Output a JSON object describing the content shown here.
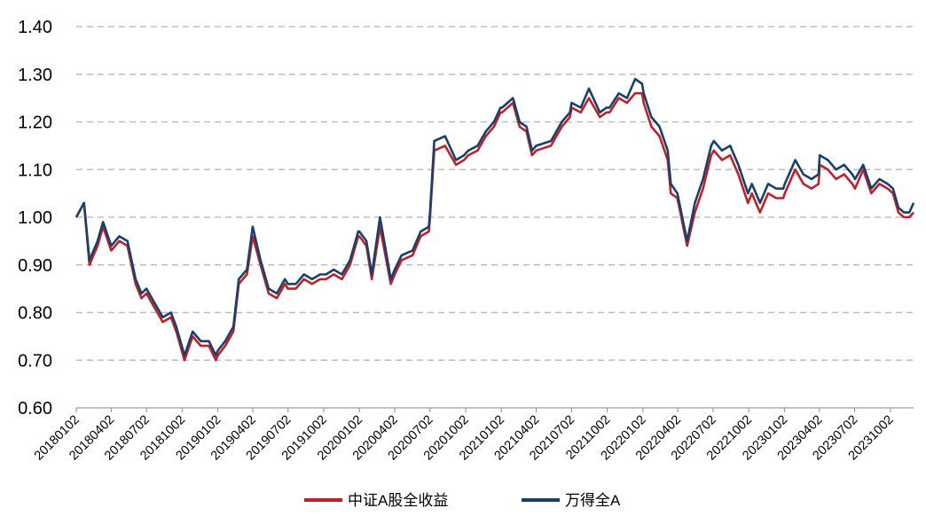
{
  "chart_data": {
    "type": "line",
    "title": "",
    "xlabel": "",
    "ylabel": "",
    "ylim": [
      0.6,
      1.4
    ],
    "yticks": [
      "0.60",
      "0.70",
      "0.80",
      "0.90",
      "1.00",
      "1.10",
      "1.20",
      "1.30",
      "1.40"
    ],
    "grid": "horizontal-dashed",
    "legend_position": "bottom",
    "x_tick_labels": [
      "20180102",
      "20180402",
      "20180702",
      "20181002",
      "20190102",
      "20190402",
      "20190702",
      "20191002",
      "20200102",
      "20200402",
      "20200702",
      "20201002",
      "20210102",
      "20210402",
      "20210702",
      "20211002",
      "20220102",
      "20220402",
      "20220702",
      "20221002",
      "20230102",
      "20230402",
      "20230702",
      "20231002"
    ],
    "x": [
      "2018-01-02",
      "2018-01-22",
      "2018-02-05",
      "2018-02-26",
      "2018-03-12",
      "2018-04-02",
      "2018-04-23",
      "2018-05-14",
      "2018-06-04",
      "2018-06-19",
      "2018-07-02",
      "2018-07-23",
      "2018-08-13",
      "2018-09-03",
      "2018-09-17",
      "2018-10-08",
      "2018-10-29",
      "2018-11-19",
      "2018-12-10",
      "2018-12-28",
      "2019-01-02",
      "2019-01-21",
      "2019-02-11",
      "2019-02-25",
      "2019-03-18",
      "2019-04-02",
      "2019-04-22",
      "2019-05-13",
      "2019-06-03",
      "2019-06-24",
      "2019-07-02",
      "2019-07-22",
      "2019-08-12",
      "2019-09-02",
      "2019-09-23",
      "2019-10-08",
      "2019-10-28",
      "2019-11-18",
      "2019-12-09",
      "2019-12-30",
      "2020-01-02",
      "2020-01-20",
      "2020-02-03",
      "2020-02-24",
      "2020-03-23",
      "2020-04-02",
      "2020-04-20",
      "2020-05-18",
      "2020-06-08",
      "2020-06-29",
      "2020-07-02",
      "2020-07-13",
      "2020-08-10",
      "2020-09-07",
      "2020-09-28",
      "2020-10-09",
      "2020-11-02",
      "2020-11-23",
      "2020-12-14",
      "2020-12-31",
      "2021-01-04",
      "2021-02-01",
      "2021-02-18",
      "2021-03-08",
      "2021-03-22",
      "2021-04-02",
      "2021-05-10",
      "2021-06-07",
      "2021-06-28",
      "2021-07-02",
      "2021-07-26",
      "2021-08-16",
      "2021-09-13",
      "2021-09-30",
      "2021-10-08",
      "2021-11-01",
      "2021-11-22",
      "2021-12-13",
      "2021-12-31",
      "2022-01-04",
      "2022-01-24",
      "2022-02-14",
      "2022-03-07",
      "2022-03-15",
      "2022-04-01",
      "2022-04-26",
      "2022-05-16",
      "2022-06-06",
      "2022-06-27",
      "2022-07-04",
      "2022-07-25",
      "2022-08-15",
      "2022-09-05",
      "2022-09-30",
      "2022-10-10",
      "2022-10-31",
      "2022-11-21",
      "2022-12-12",
      "2022-12-30",
      "2023-01-03",
      "2023-01-30",
      "2023-02-20",
      "2023-03-13",
      "2023-03-31",
      "2023-04-03",
      "2023-04-24",
      "2023-05-15",
      "2023-06-05",
      "2023-06-26",
      "2023-07-03",
      "2023-07-24",
      "2023-08-14",
      "2023-09-04",
      "2023-09-25",
      "2023-10-09",
      "2023-10-23",
      "2023-11-06",
      "2023-11-20",
      "2023-12-01"
    ],
    "series": [
      {
        "name": "中证A股全收益",
        "color": "#c0202a",
        "values": [
          1.0,
          1.03,
          0.9,
          0.94,
          0.98,
          0.93,
          0.95,
          0.94,
          0.86,
          0.83,
          0.84,
          0.81,
          0.78,
          0.79,
          0.76,
          0.7,
          0.75,
          0.73,
          0.73,
          0.7,
          0.71,
          0.73,
          0.76,
          0.86,
          0.88,
          0.96,
          0.9,
          0.84,
          0.83,
          0.86,
          0.85,
          0.85,
          0.87,
          0.86,
          0.87,
          0.87,
          0.88,
          0.87,
          0.9,
          0.96,
          0.96,
          0.94,
          0.87,
          0.98,
          0.86,
          0.88,
          0.91,
          0.92,
          0.96,
          0.97,
          1.0,
          1.14,
          1.15,
          1.11,
          1.12,
          1.13,
          1.14,
          1.17,
          1.19,
          1.22,
          1.22,
          1.24,
          1.19,
          1.18,
          1.13,
          1.14,
          1.15,
          1.19,
          1.21,
          1.23,
          1.22,
          1.25,
          1.21,
          1.22,
          1.22,
          1.25,
          1.24,
          1.26,
          1.26,
          1.24,
          1.19,
          1.17,
          1.12,
          1.05,
          1.04,
          0.94,
          1.01,
          1.06,
          1.13,
          1.14,
          1.12,
          1.13,
          1.09,
          1.03,
          1.05,
          1.01,
          1.05,
          1.04,
          1.04,
          1.05,
          1.1,
          1.07,
          1.06,
          1.07,
          1.11,
          1.1,
          1.08,
          1.09,
          1.07,
          1.06,
          1.1,
          1.05,
          1.07,
          1.06,
          1.05,
          1.01,
          1.0,
          1.0,
          1.01
        ]
      },
      {
        "name": "万得全A",
        "color": "#17406b",
        "values": [
          1.0,
          1.03,
          0.91,
          0.95,
          0.99,
          0.94,
          0.96,
          0.95,
          0.87,
          0.84,
          0.85,
          0.82,
          0.79,
          0.8,
          0.77,
          0.71,
          0.76,
          0.74,
          0.74,
          0.71,
          0.72,
          0.74,
          0.77,
          0.87,
          0.89,
          0.98,
          0.91,
          0.85,
          0.84,
          0.87,
          0.86,
          0.86,
          0.88,
          0.87,
          0.88,
          0.88,
          0.89,
          0.88,
          0.91,
          0.97,
          0.97,
          0.95,
          0.88,
          1.0,
          0.87,
          0.89,
          0.92,
          0.93,
          0.97,
          0.98,
          1.01,
          1.16,
          1.17,
          1.12,
          1.13,
          1.14,
          1.15,
          1.18,
          1.2,
          1.23,
          1.23,
          1.25,
          1.2,
          1.19,
          1.14,
          1.15,
          1.16,
          1.2,
          1.22,
          1.24,
          1.23,
          1.27,
          1.22,
          1.23,
          1.23,
          1.26,
          1.25,
          1.29,
          1.28,
          1.26,
          1.21,
          1.19,
          1.14,
          1.07,
          1.05,
          0.95,
          1.03,
          1.08,
          1.15,
          1.16,
          1.14,
          1.15,
          1.11,
          1.05,
          1.07,
          1.03,
          1.07,
          1.06,
          1.06,
          1.07,
          1.12,
          1.09,
          1.08,
          1.09,
          1.13,
          1.12,
          1.1,
          1.11,
          1.09,
          1.08,
          1.11,
          1.06,
          1.08,
          1.07,
          1.06,
          1.02,
          1.01,
          1.01,
          1.03
        ]
      }
    ]
  }
}
